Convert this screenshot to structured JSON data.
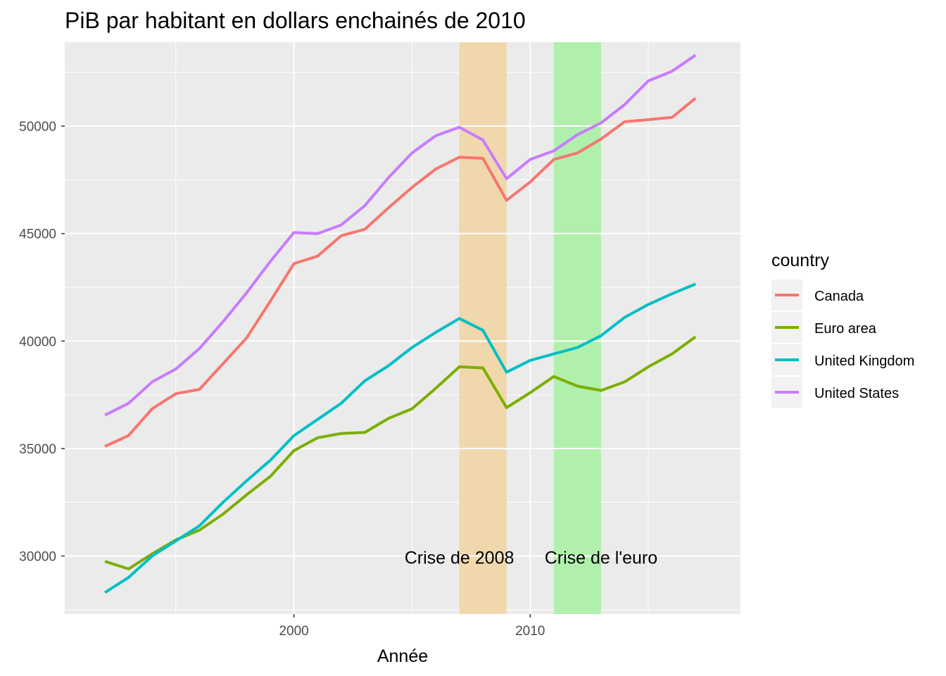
{
  "chart_data": {
    "type": "line",
    "title": "PiB par habitant en dollars enchainés de 2010",
    "xlabel": "Année",
    "ylabel": "",
    "xlim": [
      1990.3,
      2018.9
    ],
    "ylim": [
      27300,
      53900
    ],
    "xticks": [
      2000,
      2010
    ],
    "yticks": [
      30000,
      35000,
      40000,
      45000,
      50000
    ],
    "grid": true,
    "legend": {
      "title": "country",
      "position": "right"
    },
    "shaded_regions": [
      {
        "label": "Crise de 2008",
        "xmin": 2007,
        "xmax": 2009,
        "color": "#f0d8ac",
        "label_x": 2007,
        "label_y": 30000
      },
      {
        "label": "Crise de l'euro",
        "xmin": 2011,
        "xmax": 2013,
        "color": "#b0f0ac",
        "label_x": 2013,
        "label_y": 30000
      }
    ],
    "x": [
      1992,
      1993,
      1994,
      1995,
      1996,
      1997,
      1998,
      1999,
      2000,
      2001,
      2002,
      2003,
      2004,
      2005,
      2006,
      2007,
      2008,
      2009,
      2010,
      2011,
      2012,
      2013,
      2014,
      2015,
      2016,
      2017
    ],
    "series": [
      {
        "name": "Canada",
        "color": "#f8766d",
        "values": [
          35100,
          35600,
          36850,
          37550,
          37750,
          38950,
          40150,
          41850,
          43600,
          43950,
          44900,
          45200,
          46200,
          47150,
          48000,
          48550,
          48500,
          46550,
          47400,
          48450,
          48750,
          49400,
          50200,
          50300,
          50400,
          51300
        ]
      },
      {
        "name": "Euro area",
        "color": "#7cae00",
        "values": [
          29750,
          29400,
          30100,
          30750,
          31200,
          31950,
          32850,
          33700,
          34900,
          35500,
          35700,
          35750,
          36400,
          36850,
          37800,
          38800,
          38750,
          36900,
          37600,
          38350,
          37900,
          37700,
          38100,
          38800,
          39400,
          40200
        ]
      },
      {
        "name": "United Kingdom",
        "color": "#00bfc4",
        "values": [
          28300,
          29000,
          30000,
          30700,
          31400,
          32500,
          33500,
          34450,
          35600,
          36350,
          37100,
          38150,
          38850,
          39700,
          40400,
          41050,
          40500,
          38550,
          39100,
          39400,
          39700,
          40250,
          41100,
          41700,
          42200,
          42650
        ]
      },
      {
        "name": "United States",
        "color": "#c77cff",
        "values": [
          36550,
          37100,
          38100,
          38700,
          39650,
          40900,
          42250,
          43700,
          45050,
          45000,
          45400,
          46300,
          47600,
          48750,
          49550,
          49950,
          49350,
          47550,
          48450,
          48850,
          49600,
          50150,
          51000,
          52100,
          52550,
          53300
        ]
      }
    ]
  }
}
